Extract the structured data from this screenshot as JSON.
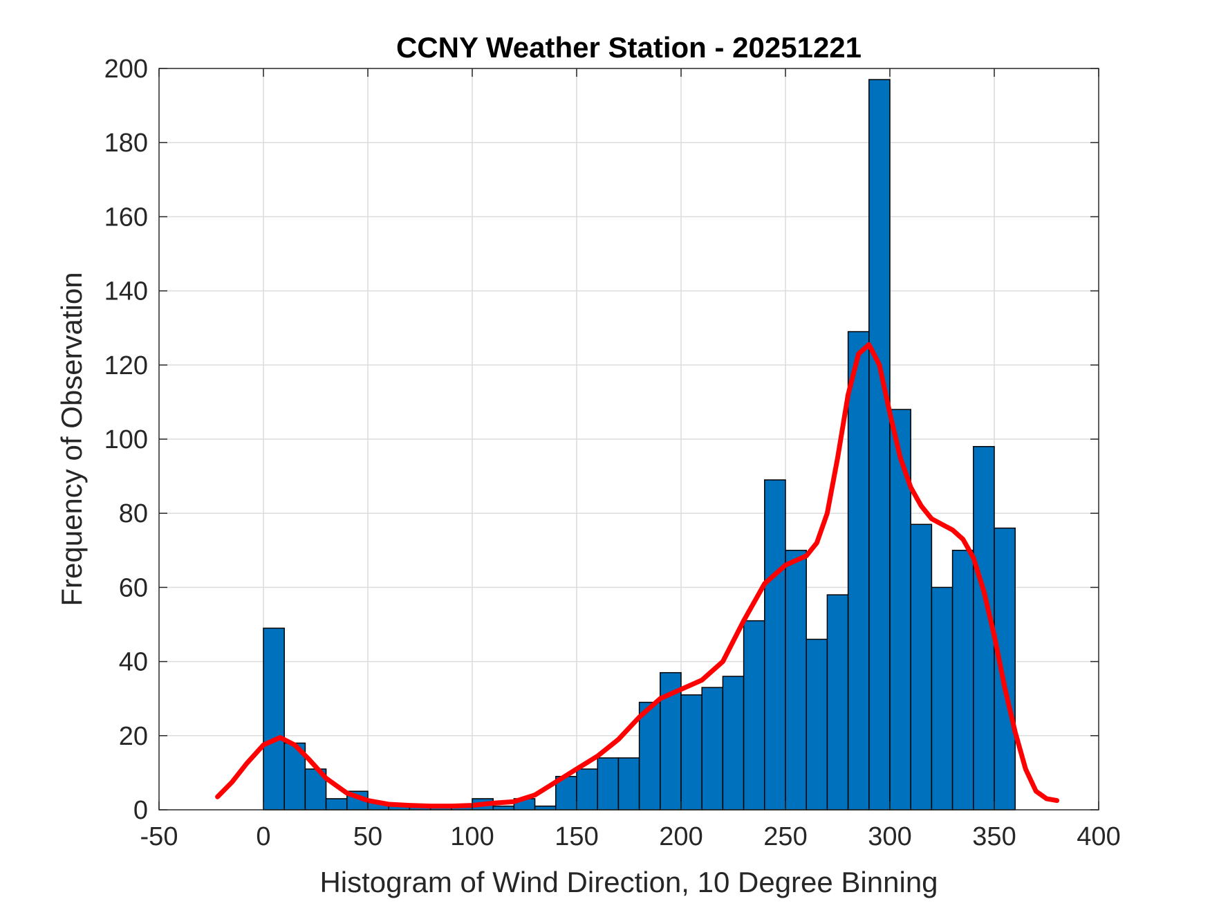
{
  "chart_data": {
    "type": "bar",
    "title": "CCNY Weather Station - 20251221",
    "xlabel": "Histogram of Wind Direction, 10 Degree Binning",
    "ylabel": "Frequency of Observation",
    "xlim": [
      -50,
      400
    ],
    "ylim": [
      0,
      200
    ],
    "xticks": [
      "-50",
      "0",
      "50",
      "100",
      "150",
      "200",
      "250",
      "300",
      "350",
      "400"
    ],
    "yticks": [
      "0",
      "20",
      "40",
      "60",
      "80",
      "100",
      "120",
      "140",
      "160",
      "180",
      "200"
    ],
    "grid": true,
    "bin_width": 10,
    "bins": [
      {
        "start": 0,
        "count": 49
      },
      {
        "start": 10,
        "count": 18
      },
      {
        "start": 20,
        "count": 11
      },
      {
        "start": 30,
        "count": 3
      },
      {
        "start": 40,
        "count": 5
      },
      {
        "start": 50,
        "count": 2
      },
      {
        "start": 60,
        "count": 1
      },
      {
        "start": 70,
        "count": 1
      },
      {
        "start": 80,
        "count": 1
      },
      {
        "start": 90,
        "count": 1
      },
      {
        "start": 100,
        "count": 3
      },
      {
        "start": 110,
        "count": 1
      },
      {
        "start": 120,
        "count": 3
      },
      {
        "start": 130,
        "count": 1
      },
      {
        "start": 140,
        "count": 9
      },
      {
        "start": 150,
        "count": 11
      },
      {
        "start": 160,
        "count": 14
      },
      {
        "start": 170,
        "count": 14
      },
      {
        "start": 180,
        "count": 29
      },
      {
        "start": 190,
        "count": 37
      },
      {
        "start": 200,
        "count": 31
      },
      {
        "start": 210,
        "count": 33
      },
      {
        "start": 220,
        "count": 36
      },
      {
        "start": 230,
        "count": 51
      },
      {
        "start": 240,
        "count": 89
      },
      {
        "start": 250,
        "count": 70
      },
      {
        "start": 260,
        "count": 46
      },
      {
        "start": 270,
        "count": 58
      },
      {
        "start": 280,
        "count": 129
      },
      {
        "start": 290,
        "count": 197
      },
      {
        "start": 300,
        "count": 108
      },
      {
        "start": 310,
        "count": 77
      },
      {
        "start": 320,
        "count": 60
      },
      {
        "start": 330,
        "count": 70
      },
      {
        "start": 340,
        "count": 98
      },
      {
        "start": 350,
        "count": 76
      }
    ],
    "fit_curve": {
      "x": [
        -22,
        -15,
        -8,
        0,
        8,
        15,
        22,
        30,
        40,
        50,
        60,
        70,
        80,
        90,
        100,
        110,
        120,
        130,
        140,
        150,
        160,
        170,
        180,
        190,
        200,
        210,
        220,
        230,
        240,
        250,
        260,
        265,
        270,
        275,
        280,
        285,
        290,
        295,
        300,
        305,
        310,
        315,
        320,
        325,
        330,
        335,
        340,
        345,
        350,
        355,
        360,
        365,
        370,
        375,
        380
      ],
      "y": [
        3.5,
        7.5,
        12.5,
        17.5,
        19.5,
        17.5,
        13.5,
        8.5,
        4.5,
        2.5,
        1.5,
        1.2,
        1.0,
        1.0,
        1.2,
        1.8,
        2.2,
        4.0,
        7.5,
        11.0,
        14.5,
        19.0,
        25.0,
        30.0,
        32.5,
        35.0,
        40.0,
        51.0,
        61.0,
        66.0,
        68.5,
        72.0,
        80.0,
        95.0,
        112.0,
        123.0,
        125.5,
        120.0,
        107.0,
        95.0,
        87.0,
        82.0,
        78.5,
        77.0,
        75.5,
        73.0,
        68.0,
        59.0,
        47.0,
        33.0,
        21.0,
        11.0,
        5.0,
        3.0,
        2.5
      ]
    },
    "colors": {
      "bars": "#0072BD",
      "fit_curve": "#FF0000"
    }
  }
}
